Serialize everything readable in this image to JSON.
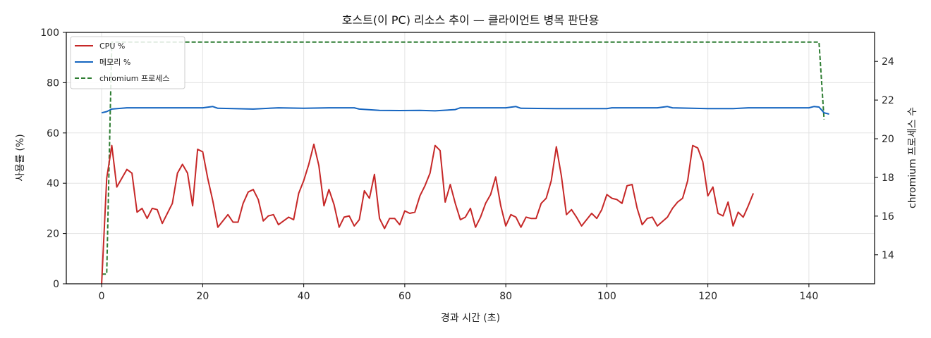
{
  "chart_data": {
    "type": "line",
    "title": "호스트(이 PC) 리소스 추이 — 클라이언트 병목 판단용",
    "xlabel": "경과 시간 (초)",
    "ylabel": "사용률 (%)",
    "y2label": "chromium 프로세스 수",
    "xlim": [
      -7,
      153
    ],
    "ylim": [
      0,
      100
    ],
    "y2lim": [
      12.5,
      25.5
    ],
    "xticks": [
      0,
      20,
      40,
      60,
      80,
      100,
      120,
      140
    ],
    "yticks": [
      0,
      20,
      40,
      60,
      80,
      100
    ],
    "y2ticks": [
      14,
      16,
      18,
      20,
      22,
      24
    ],
    "grid": true,
    "legend_position": "top-left",
    "series": [
      {
        "name": "CPU %",
        "axis": "left",
        "color": "#c62828",
        "style": "solid",
        "points": [
          [
            0,
            0
          ],
          [
            1,
            42
          ],
          [
            2,
            55
          ],
          [
            3,
            38.5
          ],
          [
            5,
            45.5
          ],
          [
            6,
            44
          ],
          [
            7,
            28.5
          ],
          [
            8,
            30
          ],
          [
            9,
            26
          ],
          [
            10,
            30
          ],
          [
            11,
            29.5
          ],
          [
            12,
            24
          ],
          [
            14,
            32
          ],
          [
            15,
            44
          ],
          [
            16,
            47.5
          ],
          [
            17,
            44
          ],
          [
            18,
            31
          ],
          [
            19,
            53.5
          ],
          [
            20,
            52.5
          ],
          [
            21,
            42
          ],
          [
            22,
            33
          ],
          [
            23,
            22.5
          ],
          [
            24,
            25
          ],
          [
            25,
            27.5
          ],
          [
            26,
            24.5
          ],
          [
            27,
            24.5
          ],
          [
            28,
            32
          ],
          [
            29,
            36.5
          ],
          [
            30,
            37.5
          ],
          [
            31,
            33.5
          ],
          [
            32,
            25
          ],
          [
            33,
            27
          ],
          [
            34,
            27.5
          ],
          [
            35,
            23.5
          ],
          [
            37,
            26.5
          ],
          [
            38,
            25.5
          ],
          [
            39,
            36
          ],
          [
            40,
            41
          ],
          [
            41,
            47.5
          ],
          [
            42,
            55.5
          ],
          [
            43,
            47
          ],
          [
            44,
            31
          ],
          [
            45,
            37.5
          ],
          [
            46,
            31.5
          ],
          [
            47,
            22.5
          ],
          [
            48,
            26.5
          ],
          [
            49,
            27
          ],
          [
            50,
            23
          ],
          [
            51,
            25.5
          ],
          [
            52,
            37
          ],
          [
            53,
            34
          ],
          [
            54,
            43.5
          ],
          [
            55,
            26
          ],
          [
            56,
            22
          ],
          [
            57,
            26
          ],
          [
            58,
            26
          ],
          [
            59,
            23.5
          ],
          [
            60,
            29
          ],
          [
            61,
            28
          ],
          [
            62,
            28.5
          ],
          [
            63,
            35
          ],
          [
            64,
            39
          ],
          [
            65,
            44
          ],
          [
            66,
            55
          ],
          [
            67,
            53
          ],
          [
            68,
            32.5
          ],
          [
            69,
            39.5
          ],
          [
            70,
            32
          ],
          [
            71,
            25.5
          ],
          [
            72,
            26.5
          ],
          [
            73,
            30
          ],
          [
            74,
            22.5
          ],
          [
            75,
            26.5
          ],
          [
            76,
            32
          ],
          [
            77,
            35.5
          ],
          [
            78,
            42.5
          ],
          [
            79,
            31
          ],
          [
            80,
            23
          ],
          [
            81,
            27.5
          ],
          [
            82,
            26.5
          ],
          [
            83,
            22.5
          ],
          [
            84,
            26.5
          ],
          [
            85,
            26
          ],
          [
            86,
            26
          ],
          [
            87,
            32
          ],
          [
            88,
            34
          ],
          [
            89,
            41
          ],
          [
            90,
            54.5
          ],
          [
            91,
            43
          ],
          [
            92,
            27.5
          ],
          [
            93,
            29.5
          ],
          [
            94,
            26.5
          ],
          [
            95,
            23
          ],
          [
            96,
            25.5
          ],
          [
            97,
            28
          ],
          [
            98,
            26
          ],
          [
            99,
            29.5
          ],
          [
            100,
            35.5
          ],
          [
            101,
            34
          ],
          [
            102,
            33.5
          ],
          [
            103,
            32
          ],
          [
            104,
            39
          ],
          [
            105,
            39.5
          ],
          [
            106,
            30
          ],
          [
            107,
            23.5
          ],
          [
            108,
            26
          ],
          [
            109,
            26.5
          ],
          [
            110,
            23
          ],
          [
            112,
            26.5
          ],
          [
            113,
            30
          ],
          [
            114,
            32.5
          ],
          [
            115,
            34
          ],
          [
            116,
            41
          ],
          [
            117,
            55
          ],
          [
            118,
            54
          ],
          [
            119,
            48.5
          ],
          [
            120,
            35
          ],
          [
            121,
            38.5
          ],
          [
            122,
            28
          ],
          [
            123,
            27
          ],
          [
            124,
            32.5
          ],
          [
            125,
            23
          ],
          [
            126,
            28.5
          ],
          [
            127,
            26.5
          ],
          [
            128,
            31
          ],
          [
            129,
            36
          ]
        ]
      },
      {
        "name": "메모리 %",
        "axis": "left",
        "color": "#1565c0",
        "style": "solid",
        "points": [
          [
            0,
            68
          ],
          [
            1,
            68.5
          ],
          [
            2,
            69.5
          ],
          [
            5,
            70
          ],
          [
            10,
            70
          ],
          [
            15,
            70
          ],
          [
            20,
            70
          ],
          [
            22,
            70.5
          ],
          [
            23,
            69.8
          ],
          [
            30,
            69.5
          ],
          [
            35,
            70
          ],
          [
            40,
            69.8
          ],
          [
            45,
            70
          ],
          [
            50,
            70
          ],
          [
            51,
            69.5
          ],
          [
            55,
            69
          ],
          [
            59,
            68.9
          ],
          [
            63,
            69
          ],
          [
            66,
            68.8
          ],
          [
            70,
            69.3
          ],
          [
            71,
            70
          ],
          [
            75,
            70
          ],
          [
            80,
            70
          ],
          [
            82,
            70.5
          ],
          [
            83,
            69.8
          ],
          [
            90,
            69.7
          ],
          [
            100,
            69.7
          ],
          [
            101,
            70
          ],
          [
            110,
            70
          ],
          [
            112,
            70.5
          ],
          [
            113,
            70
          ],
          [
            120,
            69.7
          ],
          [
            125,
            69.7
          ],
          [
            128,
            70
          ],
          [
            135,
            70
          ],
          [
            140,
            70
          ],
          [
            141,
            70.5
          ],
          [
            142,
            70.3
          ],
          [
            143,
            68
          ],
          [
            144,
            67.5
          ]
        ]
      },
      {
        "name": "chromium 프로세스",
        "axis": "right",
        "color": "#2e7d32",
        "style": "dashed",
        "points": [
          [
            0,
            13
          ],
          [
            1,
            13
          ],
          [
            2,
            25
          ],
          [
            100,
            25
          ],
          [
            142,
            25
          ],
          [
            143,
            21
          ]
        ]
      }
    ]
  }
}
